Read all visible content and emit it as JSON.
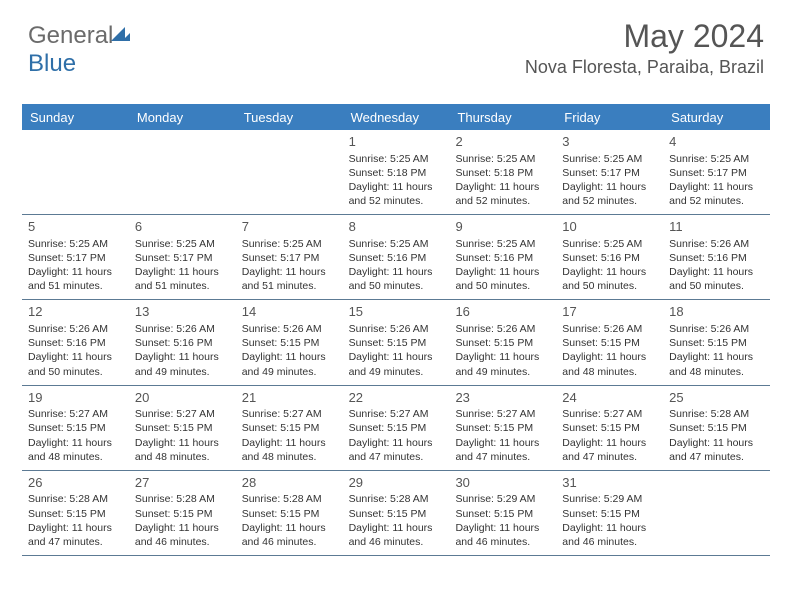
{
  "logo": {
    "part1": "General",
    "part2": "Blue"
  },
  "header": {
    "month_title": "May 2024",
    "location": "Nova Floresta, Paraiba, Brazil"
  },
  "calendar": {
    "day_names": [
      "Sunday",
      "Monday",
      "Tuesday",
      "Wednesday",
      "Thursday",
      "Friday",
      "Saturday"
    ],
    "colors": {
      "header_bg": "#3a7ebf",
      "header_text": "#ffffff",
      "grid_line": "#5c7a94",
      "text": "#333333",
      "title_text": "#555555"
    },
    "weeks": [
      [
        null,
        null,
        null,
        {
          "n": "1",
          "sr": "Sunrise: 5:25 AM",
          "ss": "Sunset: 5:18 PM",
          "dl1": "Daylight: 11 hours",
          "dl2": "and 52 minutes."
        },
        {
          "n": "2",
          "sr": "Sunrise: 5:25 AM",
          "ss": "Sunset: 5:18 PM",
          "dl1": "Daylight: 11 hours",
          "dl2": "and 52 minutes."
        },
        {
          "n": "3",
          "sr": "Sunrise: 5:25 AM",
          "ss": "Sunset: 5:17 PM",
          "dl1": "Daylight: 11 hours",
          "dl2": "and 52 minutes."
        },
        {
          "n": "4",
          "sr": "Sunrise: 5:25 AM",
          "ss": "Sunset: 5:17 PM",
          "dl1": "Daylight: 11 hours",
          "dl2": "and 52 minutes."
        }
      ],
      [
        {
          "n": "5",
          "sr": "Sunrise: 5:25 AM",
          "ss": "Sunset: 5:17 PM",
          "dl1": "Daylight: 11 hours",
          "dl2": "and 51 minutes."
        },
        {
          "n": "6",
          "sr": "Sunrise: 5:25 AM",
          "ss": "Sunset: 5:17 PM",
          "dl1": "Daylight: 11 hours",
          "dl2": "and 51 minutes."
        },
        {
          "n": "7",
          "sr": "Sunrise: 5:25 AM",
          "ss": "Sunset: 5:17 PM",
          "dl1": "Daylight: 11 hours",
          "dl2": "and 51 minutes."
        },
        {
          "n": "8",
          "sr": "Sunrise: 5:25 AM",
          "ss": "Sunset: 5:16 PM",
          "dl1": "Daylight: 11 hours",
          "dl2": "and 50 minutes."
        },
        {
          "n": "9",
          "sr": "Sunrise: 5:25 AM",
          "ss": "Sunset: 5:16 PM",
          "dl1": "Daylight: 11 hours",
          "dl2": "and 50 minutes."
        },
        {
          "n": "10",
          "sr": "Sunrise: 5:25 AM",
          "ss": "Sunset: 5:16 PM",
          "dl1": "Daylight: 11 hours",
          "dl2": "and 50 minutes."
        },
        {
          "n": "11",
          "sr": "Sunrise: 5:26 AM",
          "ss": "Sunset: 5:16 PM",
          "dl1": "Daylight: 11 hours",
          "dl2": "and 50 minutes."
        }
      ],
      [
        {
          "n": "12",
          "sr": "Sunrise: 5:26 AM",
          "ss": "Sunset: 5:16 PM",
          "dl1": "Daylight: 11 hours",
          "dl2": "and 50 minutes."
        },
        {
          "n": "13",
          "sr": "Sunrise: 5:26 AM",
          "ss": "Sunset: 5:16 PM",
          "dl1": "Daylight: 11 hours",
          "dl2": "and 49 minutes."
        },
        {
          "n": "14",
          "sr": "Sunrise: 5:26 AM",
          "ss": "Sunset: 5:15 PM",
          "dl1": "Daylight: 11 hours",
          "dl2": "and 49 minutes."
        },
        {
          "n": "15",
          "sr": "Sunrise: 5:26 AM",
          "ss": "Sunset: 5:15 PM",
          "dl1": "Daylight: 11 hours",
          "dl2": "and 49 minutes."
        },
        {
          "n": "16",
          "sr": "Sunrise: 5:26 AM",
          "ss": "Sunset: 5:15 PM",
          "dl1": "Daylight: 11 hours",
          "dl2": "and 49 minutes."
        },
        {
          "n": "17",
          "sr": "Sunrise: 5:26 AM",
          "ss": "Sunset: 5:15 PM",
          "dl1": "Daylight: 11 hours",
          "dl2": "and 48 minutes."
        },
        {
          "n": "18",
          "sr": "Sunrise: 5:26 AM",
          "ss": "Sunset: 5:15 PM",
          "dl1": "Daylight: 11 hours",
          "dl2": "and 48 minutes."
        }
      ],
      [
        {
          "n": "19",
          "sr": "Sunrise: 5:27 AM",
          "ss": "Sunset: 5:15 PM",
          "dl1": "Daylight: 11 hours",
          "dl2": "and 48 minutes."
        },
        {
          "n": "20",
          "sr": "Sunrise: 5:27 AM",
          "ss": "Sunset: 5:15 PM",
          "dl1": "Daylight: 11 hours",
          "dl2": "and 48 minutes."
        },
        {
          "n": "21",
          "sr": "Sunrise: 5:27 AM",
          "ss": "Sunset: 5:15 PM",
          "dl1": "Daylight: 11 hours",
          "dl2": "and 48 minutes."
        },
        {
          "n": "22",
          "sr": "Sunrise: 5:27 AM",
          "ss": "Sunset: 5:15 PM",
          "dl1": "Daylight: 11 hours",
          "dl2": "and 47 minutes."
        },
        {
          "n": "23",
          "sr": "Sunrise: 5:27 AM",
          "ss": "Sunset: 5:15 PM",
          "dl1": "Daylight: 11 hours",
          "dl2": "and 47 minutes."
        },
        {
          "n": "24",
          "sr": "Sunrise: 5:27 AM",
          "ss": "Sunset: 5:15 PM",
          "dl1": "Daylight: 11 hours",
          "dl2": "and 47 minutes."
        },
        {
          "n": "25",
          "sr": "Sunrise: 5:28 AM",
          "ss": "Sunset: 5:15 PM",
          "dl1": "Daylight: 11 hours",
          "dl2": "and 47 minutes."
        }
      ],
      [
        {
          "n": "26",
          "sr": "Sunrise: 5:28 AM",
          "ss": "Sunset: 5:15 PM",
          "dl1": "Daylight: 11 hours",
          "dl2": "and 47 minutes."
        },
        {
          "n": "27",
          "sr": "Sunrise: 5:28 AM",
          "ss": "Sunset: 5:15 PM",
          "dl1": "Daylight: 11 hours",
          "dl2": "and 46 minutes."
        },
        {
          "n": "28",
          "sr": "Sunrise: 5:28 AM",
          "ss": "Sunset: 5:15 PM",
          "dl1": "Daylight: 11 hours",
          "dl2": "and 46 minutes."
        },
        {
          "n": "29",
          "sr": "Sunrise: 5:28 AM",
          "ss": "Sunset: 5:15 PM",
          "dl1": "Daylight: 11 hours",
          "dl2": "and 46 minutes."
        },
        {
          "n": "30",
          "sr": "Sunrise: 5:29 AM",
          "ss": "Sunset: 5:15 PM",
          "dl1": "Daylight: 11 hours",
          "dl2": "and 46 minutes."
        },
        {
          "n": "31",
          "sr": "Sunrise: 5:29 AM",
          "ss": "Sunset: 5:15 PM",
          "dl1": "Daylight: 11 hours",
          "dl2": "and 46 minutes."
        },
        null
      ]
    ]
  }
}
